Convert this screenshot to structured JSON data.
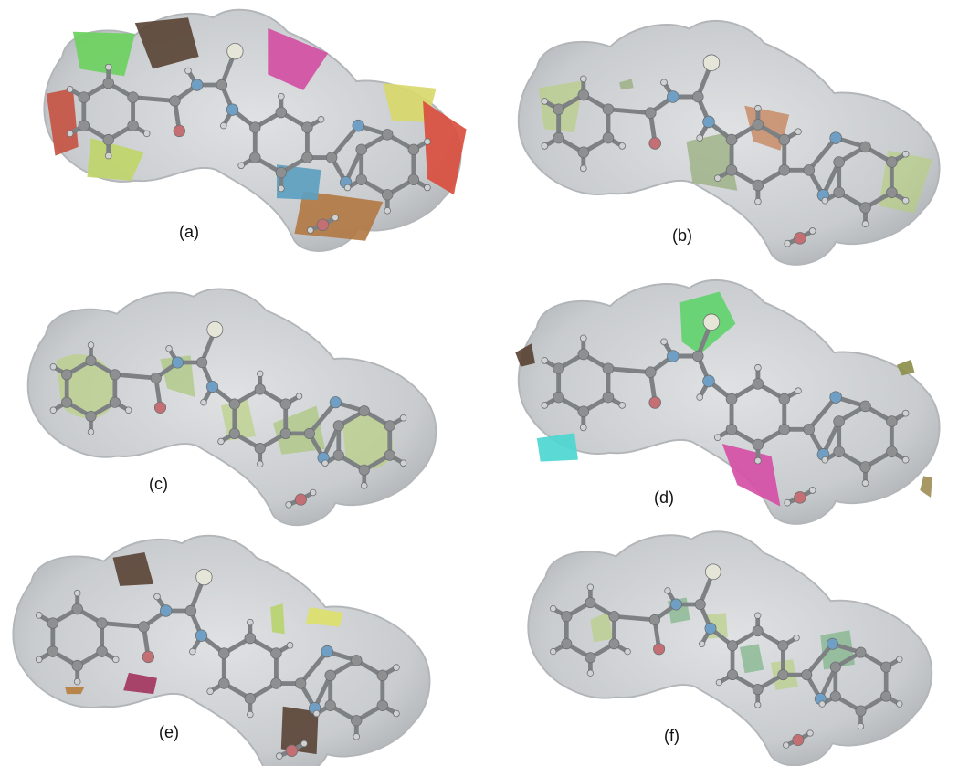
{
  "figure": {
    "panels": [
      {
        "id": "a",
        "caption": "(a)",
        "patch_style": "full-fingerprint",
        "patch_colors": [
          "#6cd15f",
          "#5a4536",
          "#d34fa3",
          "#c45544",
          "#d8d86b",
          "#b37a44",
          "#d94e3e",
          "#c0d56a",
          "#5ca0c0"
        ]
      },
      {
        "id": "b",
        "caption": "(b)",
        "patch_style": "sparse-green",
        "patch_colors": [
          "#b5cf79",
          "#8aa46a",
          "#c16d3c"
        ]
      },
      {
        "id": "c",
        "caption": "(c)",
        "patch_style": "ring-green",
        "patch_colors": [
          "#b7d177",
          "#a3c46c"
        ]
      },
      {
        "id": "d",
        "caption": "(d)",
        "patch_style": "top-cluster",
        "patch_colors": [
          "#61d36c",
          "#5a4334",
          "#4dd6d0",
          "#d54fa6",
          "#8c8f4a",
          "#9f8f58",
          "#c5732f"
        ]
      },
      {
        "id": "e",
        "caption": "(e)",
        "patch_style": "mixed-small",
        "patch_colors": [
          "#5b4537",
          "#dbe06b",
          "#b9d46f",
          "#a3365e",
          "#b67f3e"
        ]
      },
      {
        "id": "f",
        "caption": "(f)",
        "patch_style": "bond-green",
        "patch_colors": [
          "#b5cf79",
          "#6fae7a"
        ]
      }
    ],
    "surface_color": "#c9cccf",
    "atom_colors": {
      "carbon": "#8d8f91",
      "hydrogen": "#cfd1d2",
      "nitrogen": "#6f9fc4",
      "oxygen": "#c46f73"
    }
  }
}
